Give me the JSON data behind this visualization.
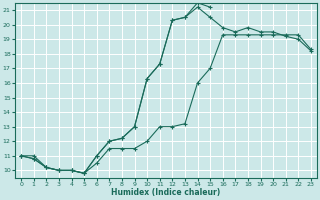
{
  "xlabel": "Humidex (Indice chaleur)",
  "bg_color": "#cce8e8",
  "grid_color": "#ffffff",
  "line_color": "#1a6b5a",
  "xlim": [
    -0.5,
    23.5
  ],
  "ylim": [
    9.5,
    21.5
  ],
  "xticks": [
    0,
    1,
    2,
    3,
    4,
    5,
    6,
    7,
    8,
    9,
    10,
    11,
    12,
    13,
    14,
    15,
    16,
    17,
    18,
    19,
    20,
    21,
    22,
    23
  ],
  "yticks": [
    10,
    11,
    12,
    13,
    14,
    15,
    16,
    17,
    18,
    19,
    20,
    21
  ],
  "line1_x": [
    0,
    1,
    2,
    3,
    4,
    5,
    6,
    7,
    8,
    9,
    10,
    11,
    12,
    13,
    14,
    15,
    16,
    17,
    18,
    19,
    20,
    21,
    22,
    23
  ],
  "line1_y": [
    11,
    11,
    10.2,
    10,
    10,
    9.8,
    10.5,
    11.5,
    11.5,
    11.5,
    12,
    13,
    13,
    13.2,
    16,
    17,
    19.3,
    19.3,
    19.3,
    19.3,
    19.3,
    19.3,
    19.3,
    18.3
  ],
  "line2_x": [
    0,
    1,
    2,
    3,
    4,
    5,
    6,
    7,
    8,
    9,
    10,
    11,
    12,
    13,
    14,
    15,
    16,
    17,
    18,
    19,
    20,
    21,
    22,
    23
  ],
  "line2_y": [
    11,
    10.8,
    10.2,
    10,
    10,
    9.8,
    11,
    12,
    12.2,
    13,
    16.3,
    17.3,
    20.3,
    20.5,
    21.2,
    20.5,
    19.8,
    19.5,
    19.8,
    19.5,
    19.5,
    19.2,
    19.0,
    18.2
  ],
  "line3_x": [
    0,
    1,
    2,
    3,
    4,
    5,
    6,
    7,
    8,
    9,
    10,
    11,
    12,
    13,
    14,
    15
  ],
  "line3_y": [
    11,
    10.8,
    10.2,
    10,
    10,
    9.8,
    11,
    12,
    12.2,
    13,
    16.3,
    17.3,
    20.3,
    20.5,
    21.5,
    21.2
  ]
}
